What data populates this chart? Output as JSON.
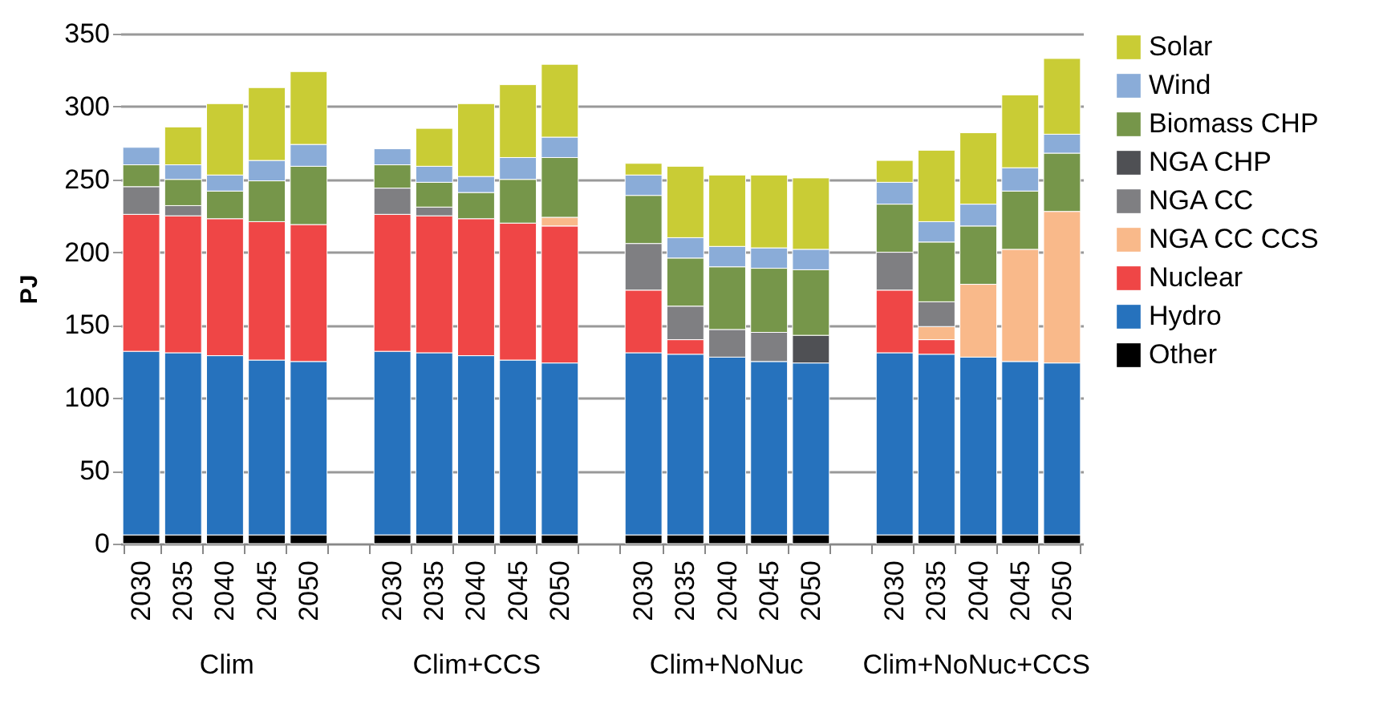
{
  "chart_data": {
    "type": "bar",
    "stacked": true,
    "ylabel": "PJ",
    "categories": [
      "2030",
      "2035",
      "2040",
      "2045",
      "2050",
      null,
      "2030",
      "2035",
      "2040",
      "2045",
      "2050",
      null,
      "2030",
      "2035",
      "2040",
      "2045",
      "2050",
      null,
      "2030",
      "2035",
      "2040",
      "2045",
      "2050"
    ],
    "annotations": [
      "Clim",
      "Clim+CCS",
      "Clim+NoNuc",
      "Clim+NoNuc+CCS"
    ],
    "ylim": [
      0,
      350
    ],
    "yticks": [
      0,
      50,
      100,
      150,
      200,
      250,
      300,
      350
    ],
    "grid": "y",
    "legend": "right",
    "series": [
      {
        "name": "Other",
        "color": "#000000",
        "values": [
          6,
          6,
          6,
          6,
          6,
          null,
          6,
          6,
          6,
          6,
          6,
          null,
          6,
          6,
          6,
          6,
          6,
          null,
          6,
          6,
          6,
          6,
          6
        ]
      },
      {
        "name": "Hydro",
        "color": "#2672bd",
        "values": [
          126,
          125,
          123,
          120,
          119,
          null,
          126,
          125,
          123,
          120,
          118,
          null,
          125,
          124,
          122,
          119,
          118,
          null,
          125,
          124,
          122,
          119,
          118
        ]
      },
      {
        "name": "Nuclear",
        "color": "#ef4646",
        "values": [
          94,
          94,
          94,
          95,
          94,
          null,
          94,
          94,
          94,
          94,
          94,
          null,
          43,
          10,
          null,
          null,
          null,
          null,
          43,
          10,
          null,
          null,
          null
        ]
      },
      {
        "name": "NGA CC CCS",
        "color": "#f9b98a",
        "values": [
          null,
          null,
          null,
          null,
          null,
          null,
          null,
          null,
          null,
          null,
          6,
          null,
          null,
          null,
          null,
          null,
          null,
          null,
          null,
          9,
          50,
          77,
          104
        ]
      },
      {
        "name": "NGA CC",
        "color": "#7f7f82",
        "values": [
          19,
          7,
          null,
          null,
          null,
          null,
          18,
          6,
          null,
          null,
          null,
          null,
          32,
          23,
          19,
          20,
          null,
          null,
          26,
          17,
          null,
          null,
          null
        ]
      },
      {
        "name": "NGA CHP",
        "color": "#4f5054",
        "values": [
          null,
          null,
          null,
          null,
          null,
          null,
          null,
          null,
          null,
          null,
          null,
          null,
          null,
          null,
          null,
          null,
          19,
          null,
          null,
          null,
          null,
          null,
          null
        ]
      },
      {
        "name": "Biomass CHP",
        "color": "#76964a",
        "values": [
          15,
          18,
          19,
          28,
          40,
          null,
          16,
          17,
          18,
          30,
          41,
          null,
          33,
          33,
          43,
          44,
          45,
          null,
          33,
          41,
          40,
          40,
          40
        ]
      },
      {
        "name": "Wind",
        "color": "#8aacd8",
        "values": [
          12,
          10,
          11,
          14,
          15,
          null,
          11,
          11,
          11,
          15,
          14,
          null,
          14,
          14,
          14,
          14,
          14,
          null,
          15,
          14,
          15,
          16,
          13
        ]
      },
      {
        "name": "Solar",
        "color": "#c9cc35",
        "values": [
          null,
          26,
          49,
          50,
          50,
          null,
          null,
          26,
          50,
          50,
          50,
          null,
          8,
          49,
          49,
          50,
          49,
          null,
          15,
          49,
          49,
          50,
          52
        ]
      }
    ]
  }
}
